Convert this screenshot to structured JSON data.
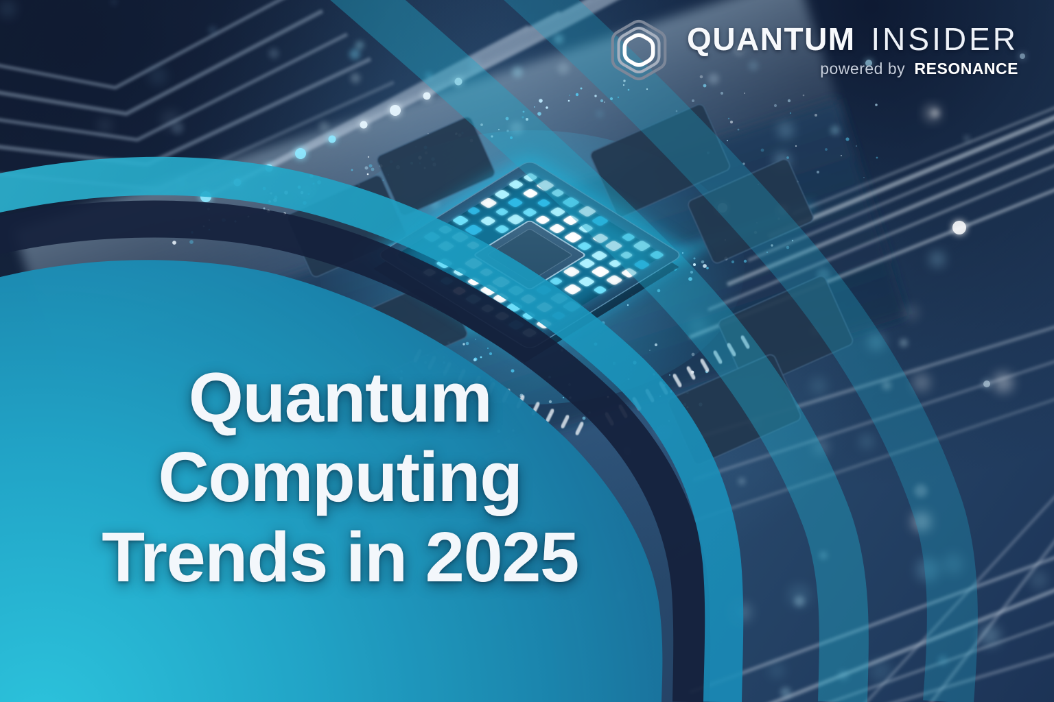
{
  "branding": {
    "logo_icon": "nested-hexagons-icon",
    "wordmark_primary": "QUANTUM",
    "wordmark_secondary": "INSIDER",
    "tagline_prefix": "powered by",
    "tagline_brand": "RESONANCE"
  },
  "hero": {
    "title_line1": "Quantum Computing",
    "title_line2": "Trends in 2025"
  },
  "colors": {
    "accent_teal": "#1fb2d2",
    "dark_navy": "#15213c",
    "chip_glow": "#35d6ff",
    "title_white": "#f3f7fb"
  }
}
